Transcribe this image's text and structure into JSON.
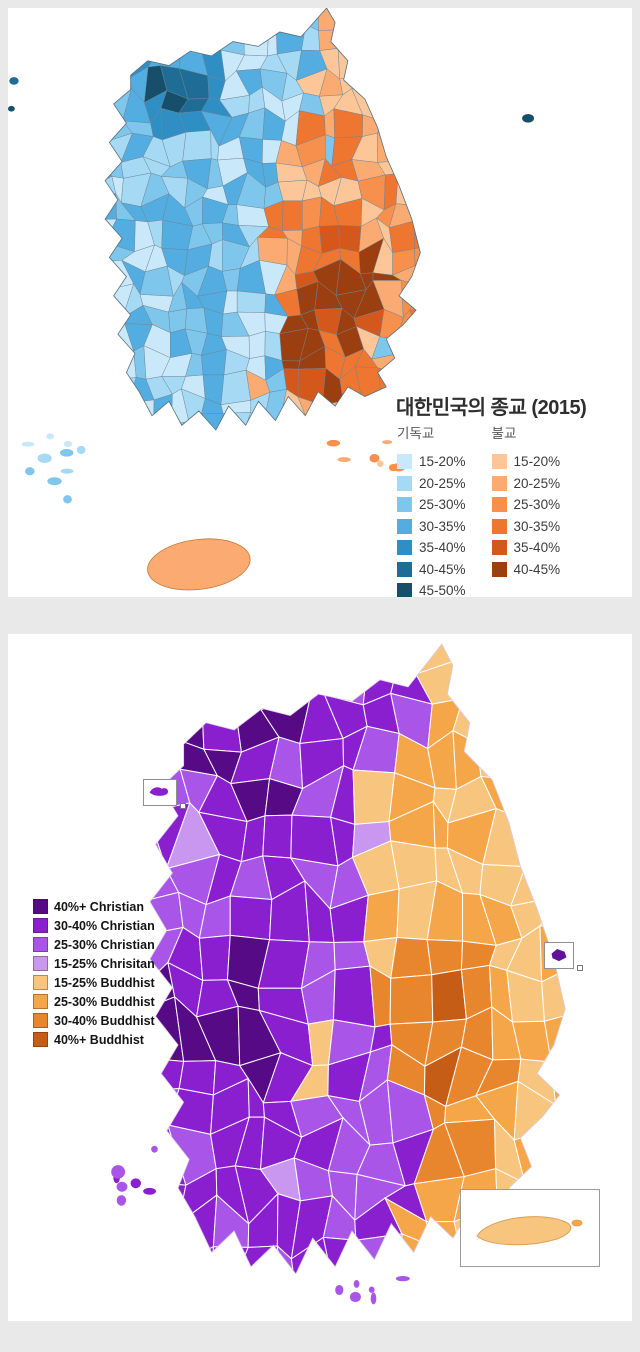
{
  "page": {
    "background": "#e9e9e9",
    "panel_background": "#ffffff"
  },
  "map_top": {
    "title": "대한민국의 종교 (2015)",
    "legend_christian": {
      "header": "기독교",
      "items": [
        {
          "label": "15-20%",
          "color": "#c9e9fa"
        },
        {
          "label": "20-25%",
          "color": "#a6d9f4"
        },
        {
          "label": "25-30%",
          "color": "#7fc6ec"
        },
        {
          "label": "30-35%",
          "color": "#53ade0"
        },
        {
          "label": "35-40%",
          "color": "#2f8fc4"
        },
        {
          "label": "40-45%",
          "color": "#1f6d96"
        },
        {
          "label": "45-50%",
          "color": "#174f6b"
        }
      ]
    },
    "legend_buddhist": {
      "header": "불교",
      "items": [
        {
          "label": "15-20%",
          "color": "#fcc699"
        },
        {
          "label": "20-25%",
          "color": "#fbab72"
        },
        {
          "label": "25-30%",
          "color": "#f78f4d"
        },
        {
          "label": "30-35%",
          "color": "#ee7630"
        },
        {
          "label": "35-40%",
          "color": "#d4581b"
        },
        {
          "label": "40-45%",
          "color": "#9c3f10"
        }
      ]
    }
  },
  "map_bottom": {
    "legend": {
      "items": [
        {
          "label": "40%+ Christian",
          "color": "#570a86"
        },
        {
          "label": "30-40% Christian",
          "color": "#8a1fd0"
        },
        {
          "label": "25-30% Christian",
          "color": "#a855e8"
        },
        {
          "label": "15-25% Chrisitan",
          "color": "#c996f0"
        },
        {
          "label": "15-25% Buddhist",
          "color": "#f8c57f"
        },
        {
          "label": "25-30% Buddhist",
          "color": "#f5a649"
        },
        {
          "label": "30-40% Buddhist",
          "color": "#e8862d"
        },
        {
          "label": "40%+ Buddhist",
          "color": "#c65d17"
        }
      ]
    }
  }
}
